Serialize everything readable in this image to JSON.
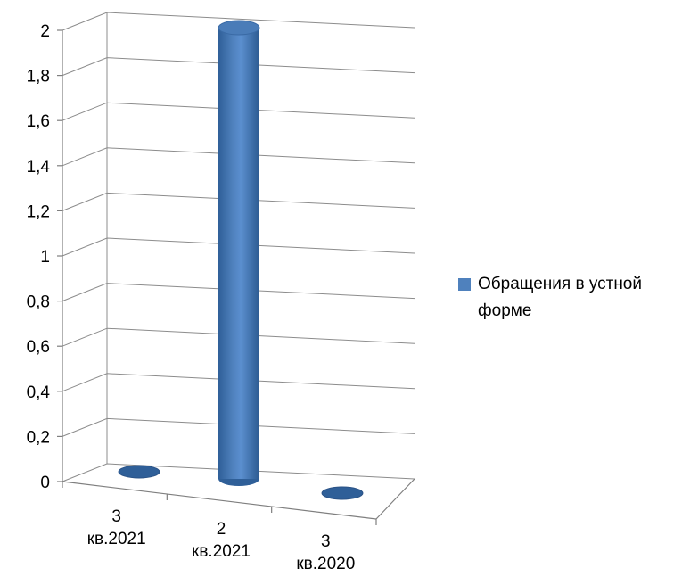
{
  "chart_data": {
    "type": "bar",
    "style": "3d-cylinder",
    "categories": [
      [
        "3",
        "кв.2021"
      ],
      [
        "2",
        "кв.2021"
      ],
      [
        "3",
        "кв.2020"
      ]
    ],
    "series": [
      {
        "name": "Обращения в устной форме",
        "values": [
          0,
          2,
          0
        ]
      }
    ],
    "y_ticks": [
      "0",
      "0,2",
      "0,4",
      "0,6",
      "0,8",
      "1",
      "1,2",
      "1,4",
      "1,6",
      "1,8",
      "2"
    ],
    "ylim": [
      0,
      2
    ],
    "grid": true,
    "legend_position": "right",
    "colors": {
      "series": "#4f81bd",
      "series_dark": "#2f5f98",
      "grid": "#8c8c8c"
    }
  }
}
